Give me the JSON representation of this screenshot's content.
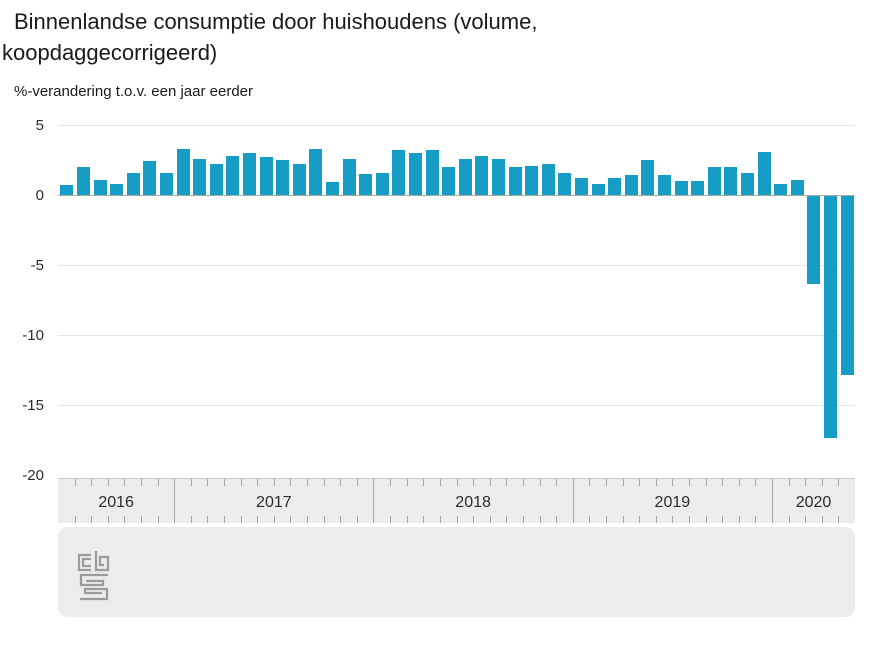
{
  "title": "Binnenlandse consumptie door huishoudens (volume, koopdaggecorrigeerd)",
  "subtitle": "%-verandering t.o.v. een jaar eerder",
  "footer": {
    "logo_name": "cbs-logo"
  },
  "chart_data": {
    "type": "bar",
    "title": "Binnenlandse consumptie door huishoudens (volume, koopdaggecorrigeerd)",
    "ylabel": "%-verandering t.o.v. een jaar eerder",
    "unit": "%",
    "bar_color": "#169dc6",
    "ylim": [
      -20,
      5
    ],
    "yticks": [
      5,
      0,
      -5,
      -10,
      -15,
      -20
    ],
    "gridline_values": [
      5,
      -5,
      -10,
      -15
    ],
    "grid": true,
    "legend_position": "none",
    "x_axis_years": [
      {
        "label": "2016",
        "months": 7
      },
      {
        "label": "2017",
        "months": 12
      },
      {
        "label": "2018",
        "months": 12
      },
      {
        "label": "2019",
        "months": 12
      },
      {
        "label": "2020",
        "months": 5
      }
    ],
    "x": [
      "2016-06",
      "2016-07",
      "2016-08",
      "2016-09",
      "2016-10",
      "2016-11",
      "2016-12",
      "2017-01",
      "2017-02",
      "2017-03",
      "2017-04",
      "2017-05",
      "2017-06",
      "2017-07",
      "2017-08",
      "2017-09",
      "2017-10",
      "2017-11",
      "2017-12",
      "2018-01",
      "2018-02",
      "2018-03",
      "2018-04",
      "2018-05",
      "2018-06",
      "2018-07",
      "2018-08",
      "2018-09",
      "2018-10",
      "2018-11",
      "2018-12",
      "2019-01",
      "2019-02",
      "2019-03",
      "2019-04",
      "2019-05",
      "2019-06",
      "2019-07",
      "2019-08",
      "2019-09",
      "2019-10",
      "2019-11",
      "2019-12",
      "2020-01",
      "2020-02",
      "2020-03",
      "2020-04",
      "2020-05"
    ],
    "series": [
      {
        "name": "Binnenlandse consumptie door huishoudens",
        "values": [
          0.7,
          2.0,
          1.1,
          0.8,
          1.6,
          2.4,
          1.6,
          3.3,
          2.6,
          2.2,
          2.8,
          3.0,
          2.7,
          2.5,
          2.2,
          3.3,
          0.9,
          2.6,
          1.5,
          1.6,
          3.2,
          3.0,
          3.2,
          2.0,
          2.6,
          2.8,
          2.6,
          2.0,
          2.1,
          2.2,
          1.6,
          1.2,
          0.8,
          1.2,
          1.4,
          2.5,
          1.4,
          1.0,
          1.0,
          2.0,
          2.0,
          1.6,
          3.1,
          0.8,
          1.1,
          -6.3,
          -17.3,
          -12.8
        ]
      }
    ]
  }
}
